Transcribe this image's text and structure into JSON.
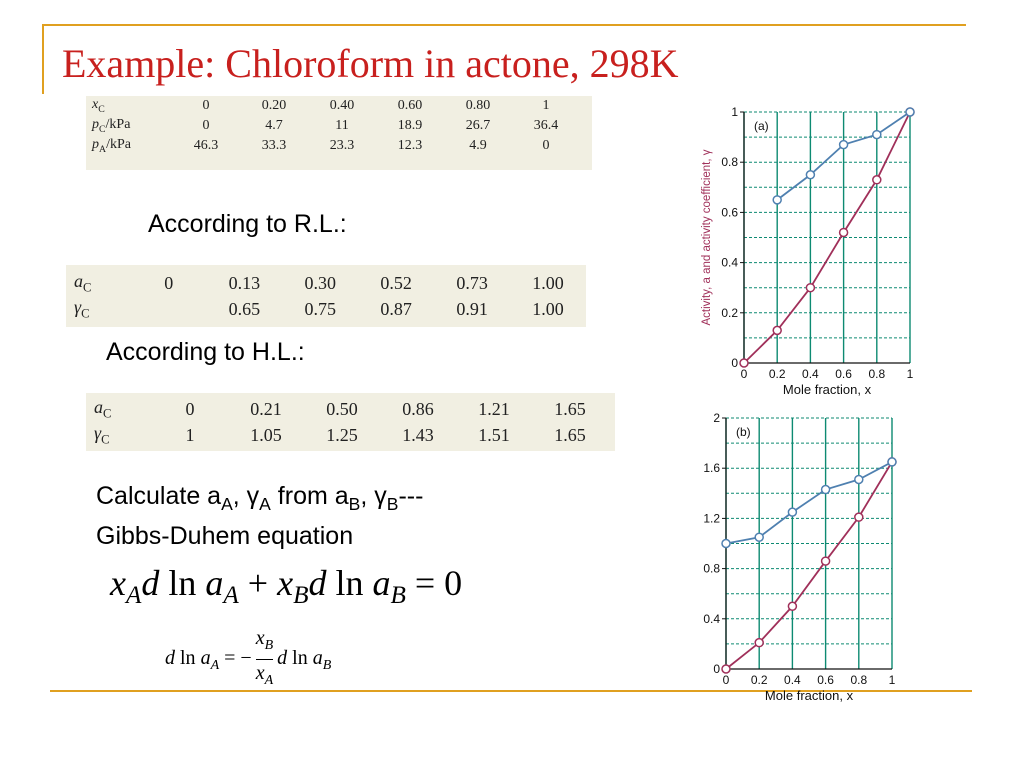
{
  "colors": {
    "frame": "#e0a020",
    "title": "#c8201e",
    "activity": "#a0305a",
    "coefficient": "#4f80b0",
    "grid": "#0d8a72"
  },
  "title": "Example: Chloroform in actone, 298K",
  "vapor_table": {
    "headers": [
      "xC",
      "pC/kPa",
      "pA/kPa"
    ],
    "rows": [
      [
        "0",
        "0.20",
        "0.40",
        "0.60",
        "0.80",
        "1"
      ],
      [
        "0",
        "4.7",
        "11",
        "18.9",
        "26.7",
        "36.4"
      ],
      [
        "46.3",
        "33.3",
        "23.3",
        "12.3",
        "4.9",
        "0"
      ]
    ]
  },
  "rl": {
    "heading": "According to R.L.:",
    "rows": [
      [
        "0",
        "0.13",
        "0.30",
        "0.52",
        "0.73",
        "1.00"
      ],
      [
        "",
        "0.65",
        "0.75",
        "0.87",
        "0.91",
        "1.00"
      ]
    ]
  },
  "hl": {
    "heading": "According to H.L.:",
    "rows": [
      [
        "0",
        "0.21",
        "0.50",
        "0.86",
        "1.21",
        "1.65"
      ],
      [
        "1",
        "1.05",
        "1.25",
        "1.43",
        "1.51",
        "1.65"
      ]
    ]
  },
  "calc": {
    "pre": "Calculate a",
    "sub1": "A",
    "mid1": ", γ",
    "sub2": "A",
    "mid2": " from a",
    "sub3": "B",
    "mid3": ", γ",
    "sub4": "B",
    "post": "---",
    "line2": "Gibbs-Duhem equation"
  },
  "chart_data": [
    {
      "type": "line",
      "panel_label": "(a)",
      "xlabel": "Mole fraction, x",
      "ylabel": "Activity, a and activity coefficient, γ",
      "xlim": [
        0,
        1
      ],
      "ylim": [
        0,
        1
      ],
      "xticks": [
        "0",
        "0.2",
        "0.4",
        "0.6",
        "0.8",
        "1"
      ],
      "yticks": [
        "0",
        "0.2",
        "0.4",
        "0.6",
        "0.8",
        "1"
      ],
      "grid": true,
      "series": [
        {
          "name": "a",
          "x": [
            0,
            0.2,
            0.4,
            0.6,
            0.8,
            1
          ],
          "y": [
            0,
            0.13,
            0.3,
            0.52,
            0.73,
            1.0
          ]
        },
        {
          "name": "γ",
          "x": [
            0.2,
            0.4,
            0.6,
            0.8,
            1
          ],
          "y": [
            0.65,
            0.75,
            0.87,
            0.91,
            1.0
          ]
        }
      ]
    },
    {
      "type": "line",
      "panel_label": "(b)",
      "xlabel": "Mole fraction, x",
      "ylabel": "",
      "xlim": [
        0,
        1
      ],
      "ylim": [
        0,
        2
      ],
      "xticks": [
        "0",
        "0.2",
        "0.4",
        "0.6",
        "0.8",
        "1"
      ],
      "yticks": [
        "0",
        "0.4",
        "0.8",
        "1.2",
        "1.6",
        "2"
      ],
      "grid": true,
      "series": [
        {
          "name": "a",
          "x": [
            0,
            0.2,
            0.4,
            0.6,
            0.8,
            1
          ],
          "y": [
            0,
            0.21,
            0.5,
            0.86,
            1.21,
            1.65
          ]
        },
        {
          "name": "γ",
          "x": [
            0,
            0.2,
            0.4,
            0.6,
            0.8,
            1
          ],
          "y": [
            1,
            1.05,
            1.25,
            1.43,
            1.51,
            1.65
          ]
        }
      ]
    }
  ]
}
